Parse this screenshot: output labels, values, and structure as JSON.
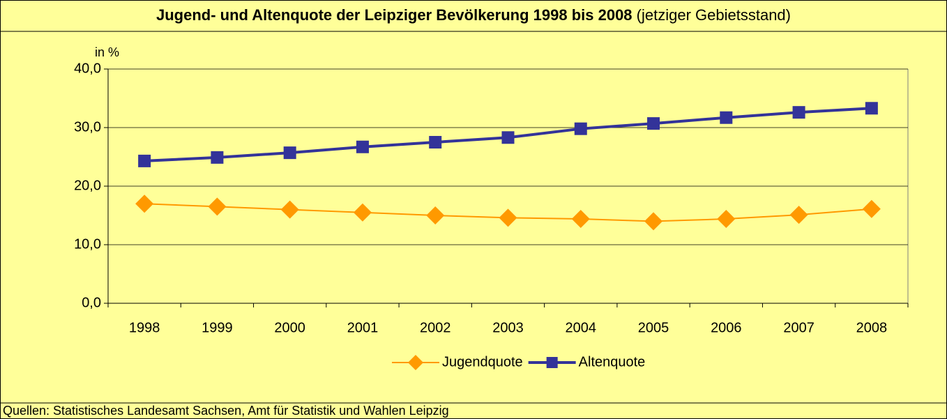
{
  "chart_data": {
    "type": "line",
    "title": "Jugend- und Altenquote der Leipziger Bevölkerung 1998 bis 2008",
    "subtitle": "(jetziger Gebietsstand)",
    "y_label": "in %",
    "source": "Quellen: Statistisches Landesamt Sachsen, Amt für Statistik und Wahlen Leipzig",
    "categories": [
      "1998",
      "1999",
      "2000",
      "2001",
      "2002",
      "2003",
      "2004",
      "2005",
      "2006",
      "2007",
      "2008"
    ],
    "series": [
      {
        "name": "Jugendquote",
        "color": "#ff9900",
        "marker": "diamond",
        "values": [
          17.0,
          16.5,
          16.0,
          15.5,
          15.0,
          14.6,
          14.4,
          14.0,
          14.4,
          15.1,
          16.1
        ]
      },
      {
        "name": "Altenquote",
        "color": "#333399",
        "marker": "square",
        "values": [
          24.3,
          24.9,
          25.7,
          26.7,
          27.5,
          28.3,
          29.8,
          30.7,
          31.7,
          32.6,
          33.3
        ]
      }
    ],
    "ylim": [
      0,
      40
    ],
    "yticks": [
      {
        "value": 0,
        "label": "0,0"
      },
      {
        "value": 10,
        "label": "10,0"
      },
      {
        "value": 20,
        "label": "20,0"
      },
      {
        "value": 30,
        "label": "30,0"
      },
      {
        "value": 40,
        "label": "40,0"
      }
    ],
    "grid": true,
    "legend": "bottom"
  }
}
